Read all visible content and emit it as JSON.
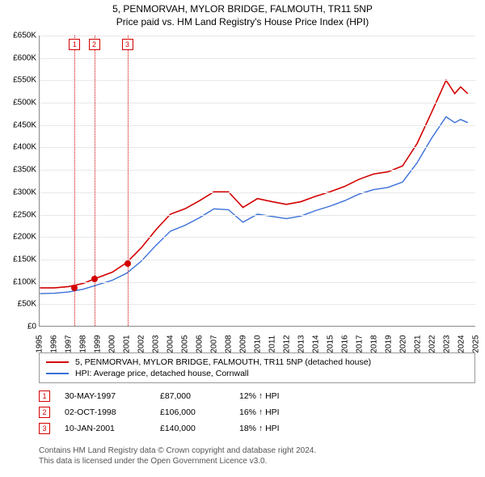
{
  "title": "5, PENMORVAH, MYLOR BRIDGE, FALMOUTH, TR11 5NP",
  "subtitle": "Price paid vs. HM Land Registry's House Price Index (HPI)",
  "chart": {
    "type": "line",
    "xlim": [
      1995,
      2025
    ],
    "ylim": [
      0,
      650000
    ],
    "ytick_step": 50000,
    "ytick_labels": [
      "£0",
      "£50K",
      "£100K",
      "£150K",
      "£200K",
      "£250K",
      "£300K",
      "£350K",
      "£400K",
      "£450K",
      "£500K",
      "£550K",
      "£600K",
      "£650K"
    ],
    "xticks": [
      1995,
      1996,
      1997,
      1998,
      1999,
      2000,
      2001,
      2002,
      2003,
      2004,
      2005,
      2006,
      2007,
      2008,
      2009,
      2010,
      2011,
      2012,
      2013,
      2014,
      2015,
      2016,
      2017,
      2018,
      2019,
      2020,
      2021,
      2022,
      2023,
      2024,
      2025
    ],
    "grid_color": "#e8e8e8",
    "series": [
      {
        "name": "property",
        "label": "5, PENMORVAH, MYLOR BRIDGE, FALMOUTH, TR11 5NP (detached house)",
        "color": "#d40000",
        "line_width": 1.6,
        "points": [
          [
            1995,
            85000
          ],
          [
            1996,
            85000
          ],
          [
            1997,
            88000
          ],
          [
            1998,
            95000
          ],
          [
            1999,
            108000
          ],
          [
            2000,
            120000
          ],
          [
            2001,
            142000
          ],
          [
            2002,
            175000
          ],
          [
            2003,
            215000
          ],
          [
            2004,
            250000
          ],
          [
            2005,
            262000
          ],
          [
            2006,
            280000
          ],
          [
            2007,
            300000
          ],
          [
            2008,
            300000
          ],
          [
            2009,
            265000
          ],
          [
            2010,
            285000
          ],
          [
            2011,
            278000
          ],
          [
            2012,
            272000
          ],
          [
            2013,
            278000
          ],
          [
            2014,
            290000
          ],
          [
            2015,
            300000
          ],
          [
            2016,
            312000
          ],
          [
            2017,
            328000
          ],
          [
            2018,
            340000
          ],
          [
            2019,
            345000
          ],
          [
            2020,
            358000
          ],
          [
            2021,
            408000
          ],
          [
            2022,
            478000
          ],
          [
            2023,
            550000
          ],
          [
            2023.6,
            520000
          ],
          [
            2024,
            535000
          ],
          [
            2024.5,
            520000
          ]
        ]
      },
      {
        "name": "hpi",
        "label": "HPI: Average price, detached house, Cornwall",
        "color": "#3a6fd8",
        "line_width": 1.4,
        "points": [
          [
            1995,
            72000
          ],
          [
            1996,
            73000
          ],
          [
            1997,
            76000
          ],
          [
            1998,
            82000
          ],
          [
            1999,
            92000
          ],
          [
            2000,
            102000
          ],
          [
            2001,
            118000
          ],
          [
            2002,
            145000
          ],
          [
            2003,
            180000
          ],
          [
            2004,
            212000
          ],
          [
            2005,
            225000
          ],
          [
            2006,
            242000
          ],
          [
            2007,
            262000
          ],
          [
            2008,
            260000
          ],
          [
            2009,
            232000
          ],
          [
            2010,
            250000
          ],
          [
            2011,
            245000
          ],
          [
            2012,
            240000
          ],
          [
            2013,
            246000
          ],
          [
            2014,
            258000
          ],
          [
            2015,
            268000
          ],
          [
            2016,
            280000
          ],
          [
            2017,
            295000
          ],
          [
            2018,
            305000
          ],
          [
            2019,
            310000
          ],
          [
            2020,
            322000
          ],
          [
            2021,
            365000
          ],
          [
            2022,
            420000
          ],
          [
            2023,
            468000
          ],
          [
            2023.6,
            455000
          ],
          [
            2024,
            462000
          ],
          [
            2024.5,
            455000
          ]
        ]
      }
    ],
    "sale_markers": [
      {
        "n": "1",
        "year": 1997.41,
        "price": 87000,
        "color": "#d40000"
      },
      {
        "n": "2",
        "year": 1998.75,
        "price": 106000,
        "color": "#d40000"
      },
      {
        "n": "3",
        "year": 2001.03,
        "price": 140000,
        "color": "#d40000"
      }
    ]
  },
  "sales": [
    {
      "n": "1",
      "date": "30-MAY-1997",
      "price": "£87,000",
      "delta": "12% ↑ HPI",
      "color": "#d40000"
    },
    {
      "n": "2",
      "date": "02-OCT-1998",
      "price": "£106,000",
      "delta": "16% ↑ HPI",
      "color": "#d40000"
    },
    {
      "n": "3",
      "date": "10-JAN-2001",
      "price": "£140,000",
      "delta": "18% ↑ HPI",
      "color": "#d40000"
    }
  ],
  "footer_line1": "Contains HM Land Registry data © Crown copyright and database right 2024.",
  "footer_line2": "This data is licensed under the Open Government Licence v3.0."
}
